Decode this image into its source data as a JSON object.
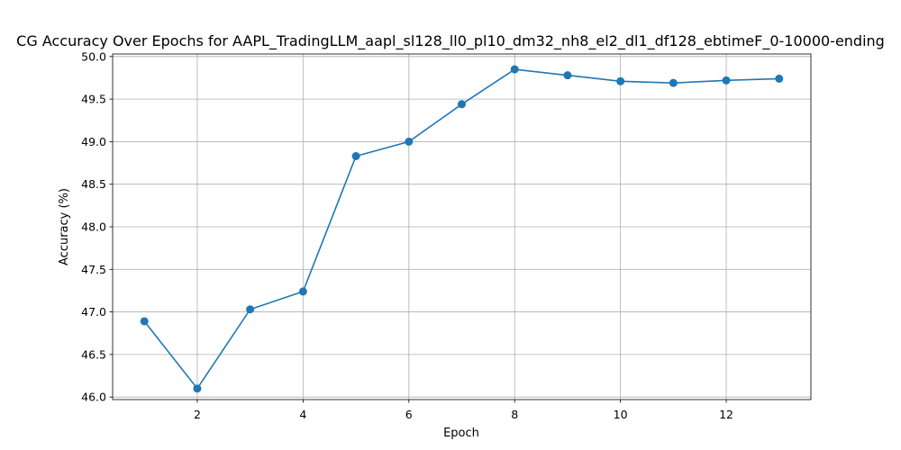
{
  "chart_data": {
    "type": "line",
    "title": "CG Accuracy Over Epochs for AAPL_TradingLLM_aapl_sl128_ll0_pl10_dm32_nh8_el2_dl1_df128_ebtimeF_0-10000-ending",
    "xlabel": "Epoch",
    "ylabel": "Accuracy (%)",
    "x": [
      1,
      2,
      3,
      4,
      5,
      6,
      7,
      8,
      9,
      10,
      11,
      12,
      13
    ],
    "series": [
      {
        "values": [
          46.89,
          46.1,
          47.03,
          47.24,
          48.83,
          49.0,
          49.44,
          49.85,
          49.78,
          49.71,
          49.69,
          49.72,
          49.74
        ],
        "color": "#1f77b4",
        "marker": "circle"
      }
    ],
    "xlim": [
      0.4,
      13.6
    ],
    "ylim": [
      45.97,
      50.03
    ],
    "xticks": [
      2,
      4,
      6,
      8,
      10,
      12
    ],
    "xtick_labels": [
      "2",
      "4",
      "6",
      "8",
      "10",
      "12"
    ],
    "yticks": [
      46.0,
      46.5,
      47.0,
      47.5,
      48.0,
      48.5,
      49.0,
      49.5,
      50.0
    ],
    "ytick_labels": [
      "46.0",
      "46.5",
      "47.0",
      "47.5",
      "48.0",
      "48.5",
      "49.0",
      "49.5",
      "50.0"
    ],
    "grid": true,
    "colors": {
      "line": "#1f77b4",
      "grid": "#b0b0b0",
      "axes": "#000000"
    }
  }
}
